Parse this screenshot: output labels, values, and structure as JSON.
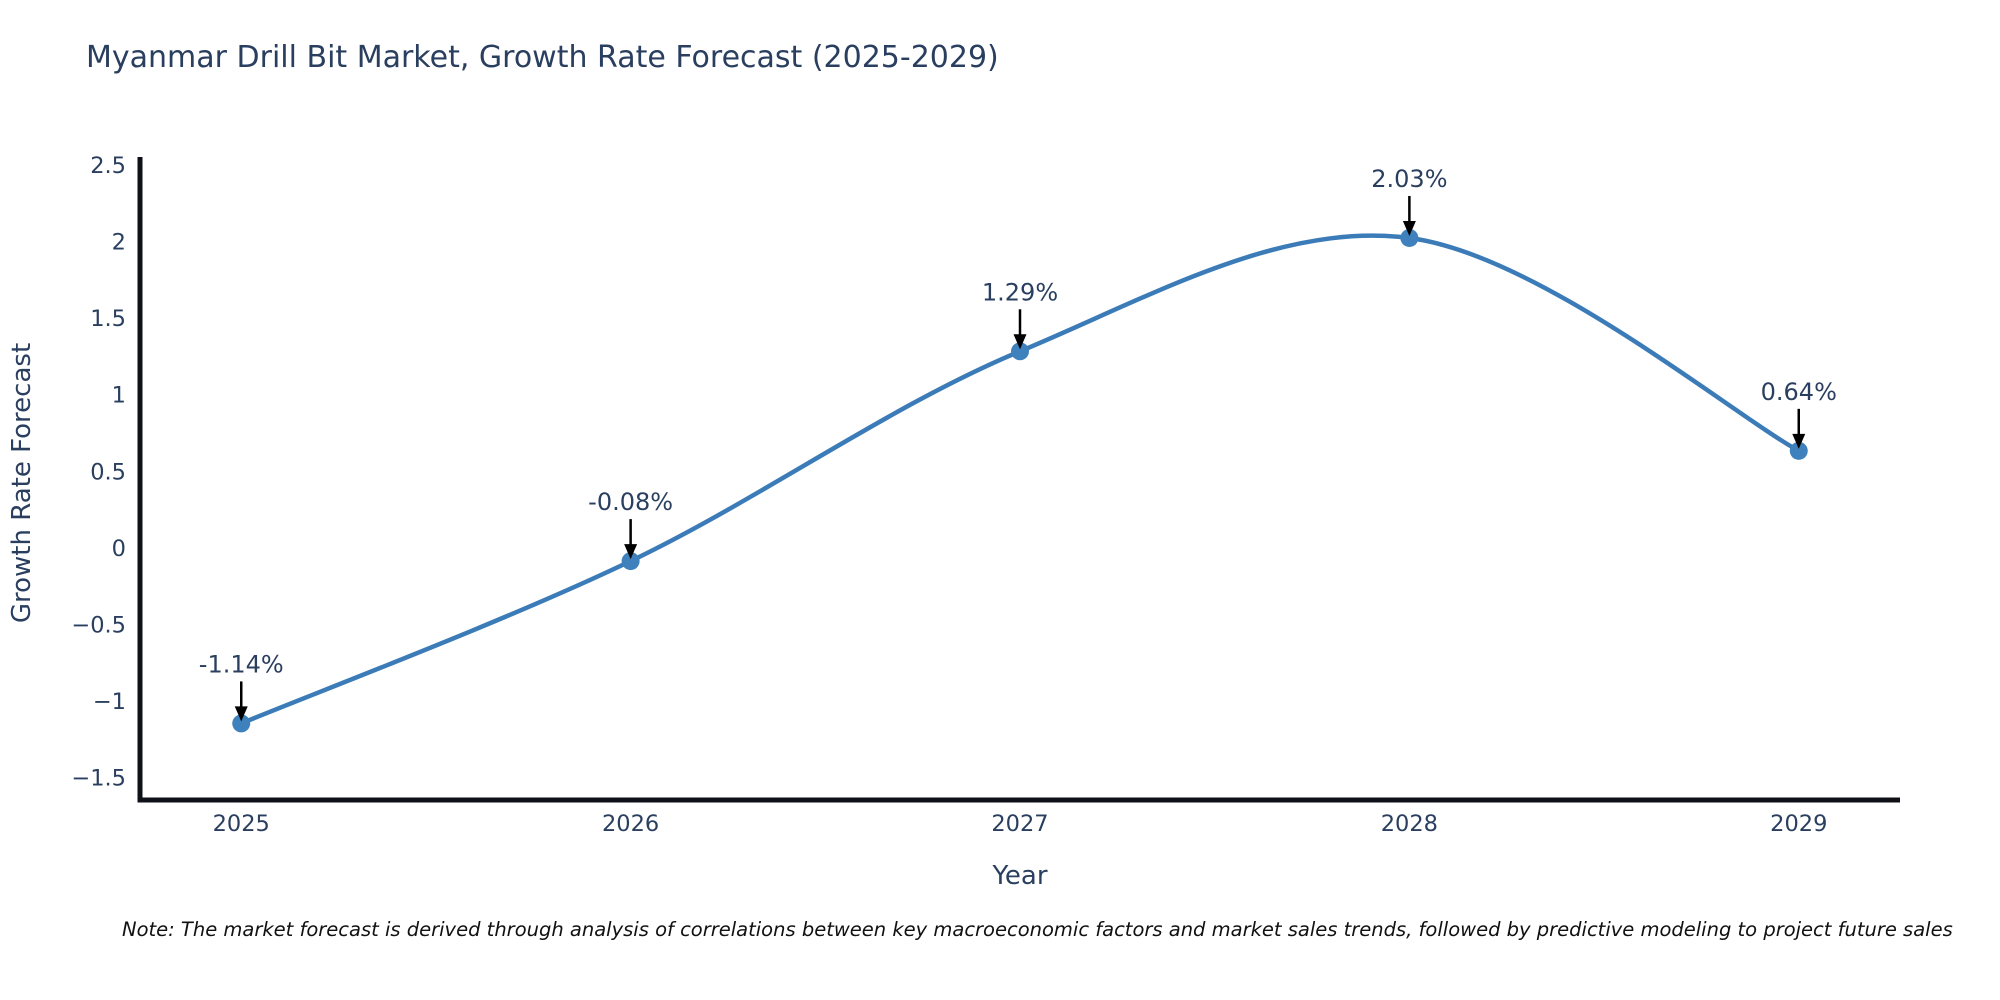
{
  "note": "Note: The market forecast is derived through analysis of correlations between key macroeconomic factors and market sales trends, followed by predictive modeling to project future sales",
  "chart_data": {
    "type": "line",
    "title": "Myanmar Drill Bit Market, Growth Rate Forecast (2025-2029)",
    "xlabel": "Year",
    "ylabel": "Growth Rate Forecast",
    "x": [
      2025,
      2026,
      2027,
      2028,
      2029
    ],
    "values": [
      -1.14,
      -0.08,
      1.29,
      2.03,
      0.64
    ],
    "point_labels": [
      "-1.14%",
      "-0.08%",
      "1.29%",
      "2.03%",
      "0.64%"
    ],
    "xtick_labels": [
      "2025",
      "2026",
      "2027",
      "2028",
      "2029"
    ],
    "yticks": [
      2.5,
      2,
      1.5,
      1,
      0.5,
      0,
      -0.5,
      -1,
      -1.5
    ],
    "ytick_labels": [
      "2.5",
      "2",
      "1.5",
      "1",
      "0.5",
      "0",
      "−0.5",
      "−1",
      "−1.5"
    ],
    "xlim": [
      2024.74,
      2029.26
    ],
    "ylim": [
      -1.64,
      2.5
    ],
    "line_shape": "spline",
    "grid": false,
    "legend": "none",
    "colors": {
      "line": "#3b7cb8",
      "marker": "#3f81bd",
      "axis": "#0f1117",
      "text": "#2a3f5f",
      "arrow": "#000000"
    }
  }
}
